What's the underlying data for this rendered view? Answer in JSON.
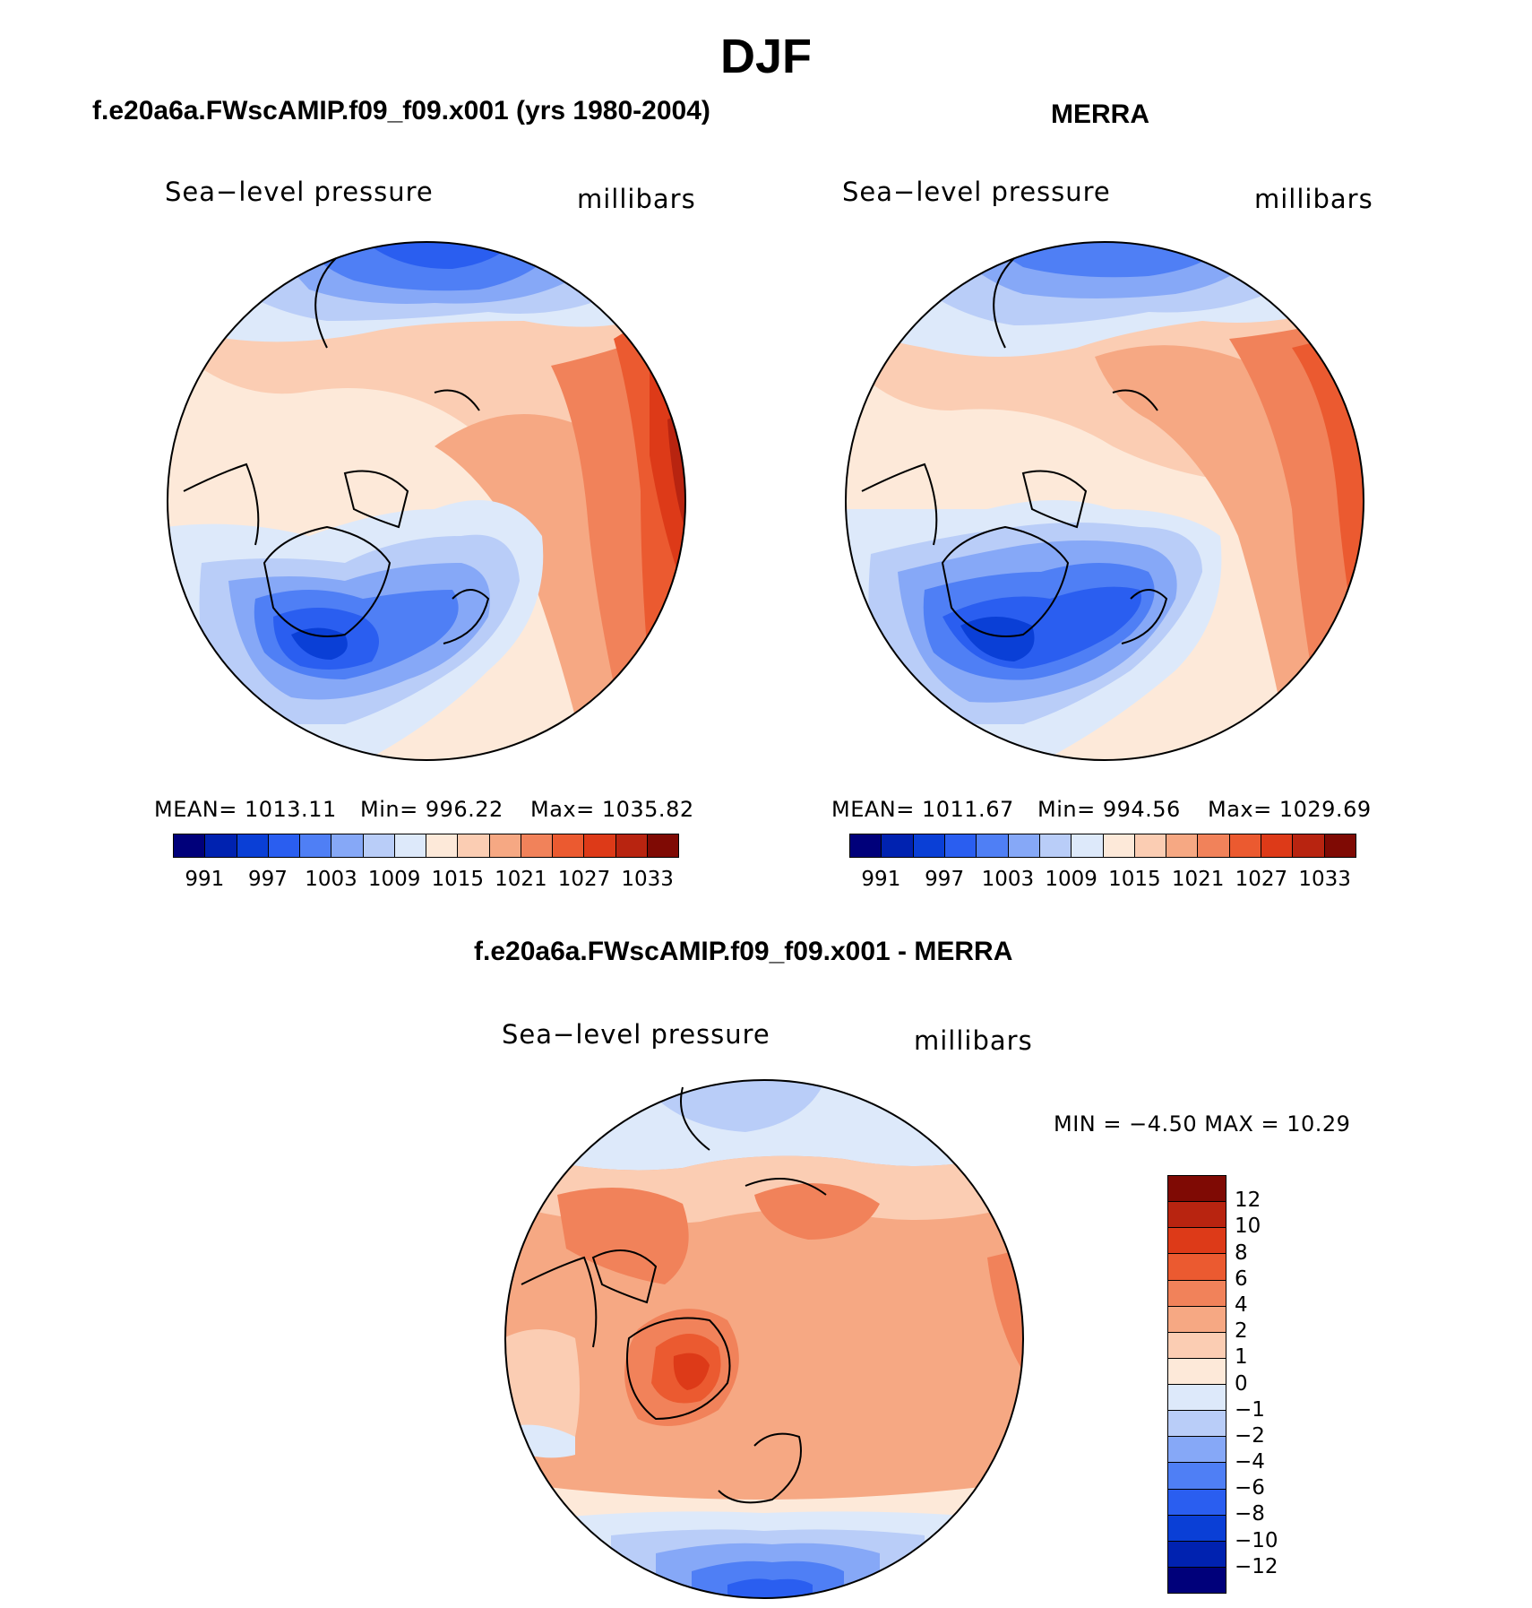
{
  "title": "DJF",
  "panels": [
    {
      "id": "model",
      "title": "f.e20a6a.FWscAMIP.f09_f09.x001 (yrs 1980-2004)",
      "variable": "Sea−level pressure",
      "units": "millibars",
      "stats": {
        "mean": "MEAN=  1013.11",
        "min": "Min=  996.22",
        "max": "Max=  1035.82"
      },
      "colorbar_ticks": [
        "991",
        "997",
        "1003",
        "1009",
        "1015",
        "1021",
        "1027",
        "1033"
      ]
    },
    {
      "id": "obs",
      "title": "MERRA",
      "variable": "Sea−level pressure",
      "units": "millibars",
      "stats": {
        "mean": "MEAN=  1011.67",
        "min": "Min=  994.56",
        "max": "Max=  1029.69"
      },
      "colorbar_ticks": [
        "991",
        "997",
        "1003",
        "1009",
        "1015",
        "1021",
        "1027",
        "1033"
      ]
    },
    {
      "id": "diff",
      "title": "f.e20a6a.FWscAMIP.f09_f09.x001 - MERRA",
      "variable": "Sea−level pressure",
      "units": "millibars",
      "stats": {
        "minmax": "MIN =   −4.50 MAX =   10.29"
      },
      "colorbar_ticks": [
        "12",
        "10",
        "8",
        "6",
        "4",
        "2",
        "1",
        "0",
        "−1",
        "−2",
        "−4",
        "−6",
        "−8",
        "−10",
        "−12"
      ]
    }
  ],
  "colors": {
    "abs_scale": [
      "#00007a",
      "#0022b0",
      "#0a3fd6",
      "#2a5ef0",
      "#4f7ff5",
      "#86a8f7",
      "#b9cdf8",
      "#dde9fa",
      "#fde9d9",
      "#fbcdb3",
      "#f6a883",
      "#f1825a",
      "#eb5a30",
      "#dd3a18",
      "#b82410",
      "#7f0a04"
    ],
    "diff_scale": [
      "#7f0a04",
      "#b82410",
      "#dd3a18",
      "#eb5a30",
      "#f1825a",
      "#f6a883",
      "#fbcdb3",
      "#fde9d9",
      "#dde9fa",
      "#b9cdf8",
      "#86a8f7",
      "#4f7ff5",
      "#2a5ef0",
      "#0a3fd6",
      "#0022b0",
      "#00007a"
    ]
  }
}
